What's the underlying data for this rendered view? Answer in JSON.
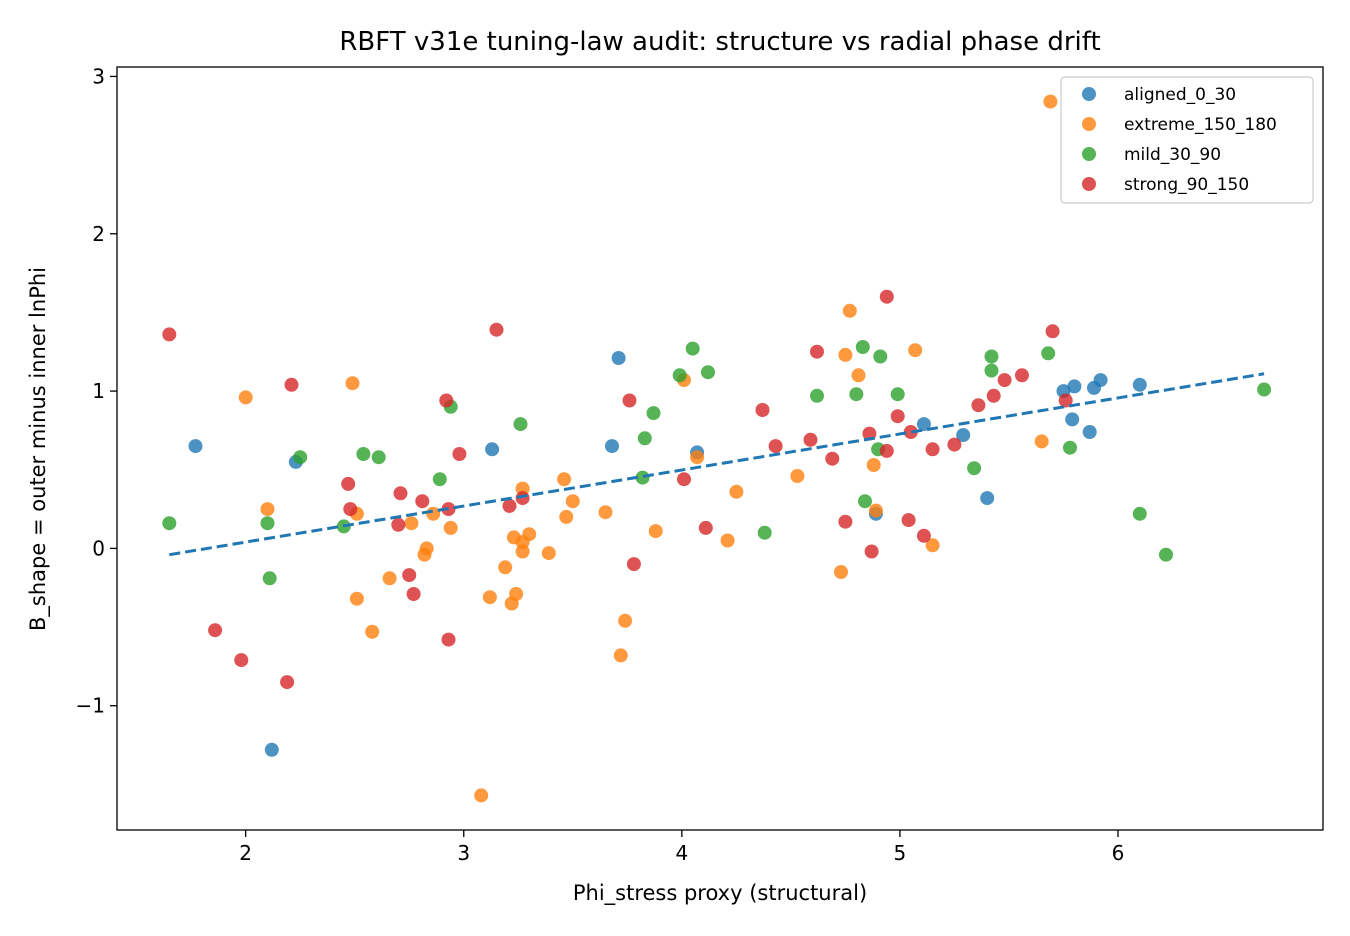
{
  "chart_data": {
    "type": "scatter",
    "title": "RBFT v31e tuning-law audit: structure vs radial phase drift",
    "xlabel": "Phi_stress proxy (structural)",
    "ylabel": "B_shape = outer minus inner lnPhi",
    "xlim": [
      1.41,
      6.94
    ],
    "ylim": [
      -1.79,
      3.06
    ],
    "xticks": [
      2,
      3,
      4,
      5,
      6
    ],
    "yticks": [
      -1,
      0,
      1,
      2,
      3
    ],
    "xtick_labels": [
      "2",
      "3",
      "4",
      "5",
      "6"
    ],
    "ytick_labels": [
      "−1",
      "0",
      "1",
      "2",
      "3"
    ],
    "grid": false,
    "legend_position": "upper right",
    "series": [
      {
        "name": "aligned_0_30",
        "color": "#1f77b4",
        "points": [
          [
            1.77,
            0.65
          ],
          [
            2.12,
            -1.28
          ],
          [
            2.23,
            0.55
          ],
          [
            3.13,
            0.63
          ],
          [
            3.68,
            0.65
          ],
          [
            3.71,
            1.21
          ],
          [
            4.07,
            0.61
          ],
          [
            4.89,
            0.22
          ],
          [
            5.11,
            0.79
          ],
          [
            5.29,
            0.72
          ],
          [
            5.4,
            0.32
          ],
          [
            5.75,
            1.0
          ],
          [
            5.8,
            1.03
          ],
          [
            5.79,
            0.82
          ],
          [
            5.87,
            0.74
          ],
          [
            5.89,
            1.02
          ],
          [
            5.92,
            1.07
          ],
          [
            6.1,
            1.04
          ]
        ]
      },
      {
        "name": "extreme_150_180",
        "color": "#ff7f0e",
        "points": [
          [
            2.0,
            0.96
          ],
          [
            2.1,
            0.25
          ],
          [
            2.49,
            1.05
          ],
          [
            2.51,
            0.22
          ],
          [
            2.51,
            -0.32
          ],
          [
            2.58,
            -0.53
          ],
          [
            2.66,
            -0.19
          ],
          [
            2.76,
            0.16
          ],
          [
            2.82,
            -0.04
          ],
          [
            2.83,
            0.0
          ],
          [
            2.86,
            0.22
          ],
          [
            2.94,
            0.13
          ],
          [
            3.08,
            -1.57
          ],
          [
            3.12,
            -0.31
          ],
          [
            3.19,
            -0.12
          ],
          [
            3.22,
            -0.35
          ],
          [
            3.23,
            0.07
          ],
          [
            3.24,
            -0.29
          ],
          [
            3.27,
            0.04
          ],
          [
            3.27,
            -0.02
          ],
          [
            3.27,
            0.38
          ],
          [
            3.3,
            0.09
          ],
          [
            3.39,
            -0.03
          ],
          [
            3.46,
            0.44
          ],
          [
            3.47,
            0.2
          ],
          [
            3.5,
            0.3
          ],
          [
            3.65,
            0.23
          ],
          [
            3.72,
            -0.68
          ],
          [
            3.74,
            -0.46
          ],
          [
            3.88,
            0.11
          ],
          [
            4.01,
            1.07
          ],
          [
            4.07,
            0.58
          ],
          [
            4.21,
            0.05
          ],
          [
            4.25,
            0.36
          ],
          [
            4.53,
            0.46
          ],
          [
            4.73,
            -0.15
          ],
          [
            4.75,
            1.23
          ],
          [
            4.77,
            1.51
          ],
          [
            4.81,
            1.1
          ],
          [
            4.88,
            0.53
          ],
          [
            4.89,
            0.24
          ],
          [
            5.07,
            1.26
          ],
          [
            5.15,
            0.02
          ],
          [
            5.65,
            0.68
          ],
          [
            5.69,
            2.84
          ]
        ]
      },
      {
        "name": "mild_30_90",
        "color": "#2ca02c",
        "points": [
          [
            1.65,
            0.16
          ],
          [
            2.1,
            0.16
          ],
          [
            2.11,
            -0.19
          ],
          [
            2.25,
            0.58
          ],
          [
            2.45,
            0.14
          ],
          [
            2.54,
            0.6
          ],
          [
            2.61,
            0.58
          ],
          [
            2.89,
            0.44
          ],
          [
            2.94,
            0.9
          ],
          [
            3.26,
            0.79
          ],
          [
            3.82,
            0.45
          ],
          [
            3.83,
            0.7
          ],
          [
            3.87,
            0.86
          ],
          [
            3.99,
            1.1
          ],
          [
            4.05,
            1.27
          ],
          [
            4.12,
            1.12
          ],
          [
            4.38,
            0.1
          ],
          [
            4.62,
            0.97
          ],
          [
            4.8,
            0.98
          ],
          [
            4.83,
            1.28
          ],
          [
            4.84,
            0.3
          ],
          [
            4.9,
            0.63
          ],
          [
            4.91,
            1.22
          ],
          [
            4.99,
            0.98
          ],
          [
            5.34,
            0.51
          ],
          [
            5.42,
            1.13
          ],
          [
            5.42,
            1.22
          ],
          [
            5.68,
            1.24
          ],
          [
            5.78,
            0.64
          ],
          [
            6.1,
            0.22
          ],
          [
            6.22,
            -0.04
          ],
          [
            6.67,
            1.01
          ]
        ]
      },
      {
        "name": "strong_90_150",
        "color": "#d62728",
        "points": [
          [
            1.65,
            1.36
          ],
          [
            1.86,
            -0.52
          ],
          [
            1.98,
            -0.71
          ],
          [
            2.19,
            -0.85
          ],
          [
            2.21,
            1.04
          ],
          [
            2.47,
            0.41
          ],
          [
            2.48,
            0.25
          ],
          [
            2.7,
            0.15
          ],
          [
            2.71,
            0.35
          ],
          [
            2.75,
            -0.17
          ],
          [
            2.77,
            -0.29
          ],
          [
            2.81,
            0.3
          ],
          [
            2.92,
            0.94
          ],
          [
            2.93,
            0.25
          ],
          [
            2.93,
            -0.58
          ],
          [
            2.98,
            0.6
          ],
          [
            3.15,
            1.39
          ],
          [
            3.21,
            0.27
          ],
          [
            3.27,
            0.32
          ],
          [
            3.76,
            0.94
          ],
          [
            3.78,
            -0.1
          ],
          [
            4.01,
            0.44
          ],
          [
            4.11,
            0.13
          ],
          [
            4.37,
            0.88
          ],
          [
            4.43,
            0.65
          ],
          [
            4.59,
            0.69
          ],
          [
            4.62,
            1.25
          ],
          [
            4.69,
            0.57
          ],
          [
            4.75,
            0.17
          ],
          [
            4.86,
            0.73
          ],
          [
            4.87,
            -0.02
          ],
          [
            4.94,
            1.6
          ],
          [
            4.94,
            0.62
          ],
          [
            4.99,
            0.84
          ],
          [
            5.04,
            0.18
          ],
          [
            5.05,
            0.74
          ],
          [
            5.11,
            0.08
          ],
          [
            5.15,
            0.63
          ],
          [
            5.25,
            0.66
          ],
          [
            5.36,
            0.91
          ],
          [
            5.43,
            0.97
          ],
          [
            5.48,
            1.07
          ],
          [
            5.56,
            1.1
          ],
          [
            5.7,
            1.38
          ],
          [
            5.76,
            0.94
          ]
        ]
      }
    ],
    "fit_line": {
      "style": "dashed",
      "color": "#1f77b4",
      "x": [
        1.65,
        6.67
      ],
      "y": [
        -0.04,
        1.11
      ]
    }
  }
}
